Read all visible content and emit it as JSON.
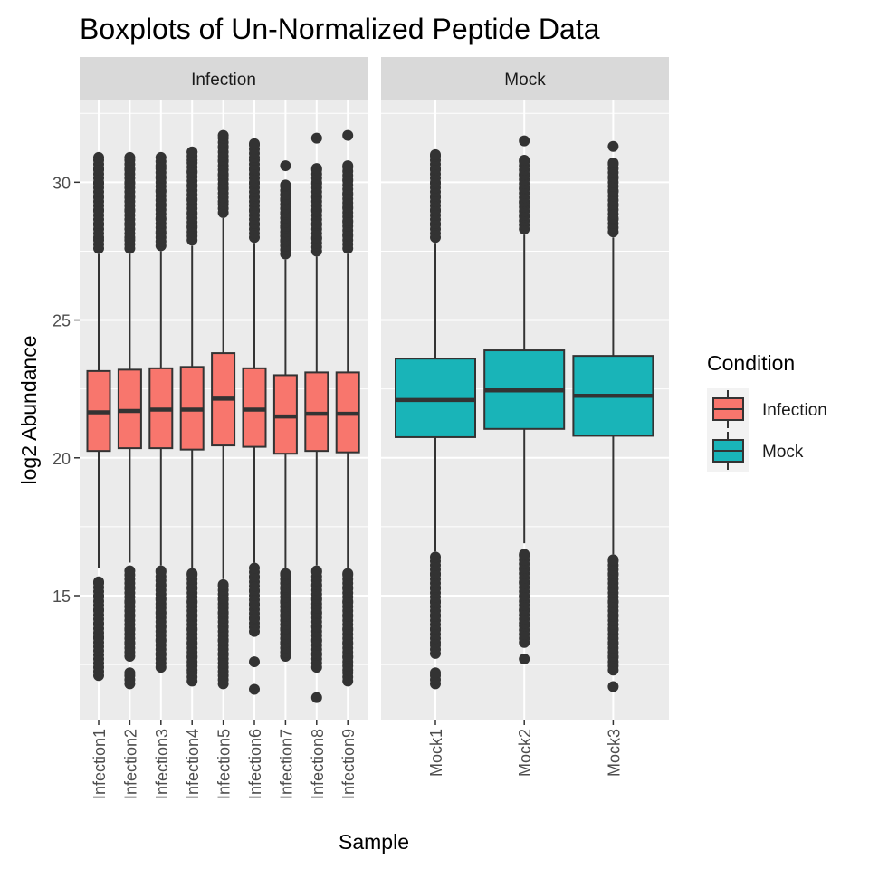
{
  "chart_data": {
    "type": "boxplot",
    "title": "Boxplots of Un-Normalized Peptide Data",
    "xlabel": "Sample",
    "ylabel": "log2 Abundance",
    "ylim": [
      10.5,
      33.0
    ],
    "yticks": [
      15,
      20,
      25,
      30
    ],
    "grid": true,
    "facets": [
      {
        "label": "Infection",
        "categories": [
          "Infection1",
          "Infection2",
          "Infection3",
          "Infection4",
          "Infection5",
          "Infection6",
          "Infection7",
          "Infection8",
          "Infection9"
        ],
        "boxes": [
          {
            "lower_whisker": 16.0,
            "q1": 20.25,
            "median": 21.65,
            "q3": 23.15,
            "upper_whisker": 27.4,
            "outliers_low": [
              12.1,
              12.7,
              13.0,
              13.5,
              14.0,
              14.5,
              15.0,
              15.5
            ],
            "outliers_high": [
              27.6,
              28.0,
              28.5,
              29.0,
              29.5,
              30.0,
              30.5,
              30.9
            ]
          },
          {
            "lower_whisker": 16.2,
            "q1": 20.35,
            "median": 21.7,
            "q3": 23.2,
            "upper_whisker": 27.4,
            "outliers_low": [
              11.8,
              12.2,
              12.8,
              13.3,
              13.8,
              14.3,
              14.8,
              15.3,
              15.9
            ],
            "outliers_high": [
              27.6,
              28.0,
              28.5,
              29.0,
              29.5,
              30.0,
              30.5,
              30.9
            ]
          },
          {
            "lower_whisker": 16.1,
            "q1": 20.35,
            "median": 21.75,
            "q3": 23.25,
            "upper_whisker": 27.5,
            "outliers_low": [
              12.4,
              12.9,
              13.4,
              13.9,
              14.4,
              14.9,
              15.4,
              15.9
            ],
            "outliers_high": [
              27.7,
              28.2,
              28.7,
              29.2,
              29.7,
              30.2,
              30.6,
              30.9
            ]
          },
          {
            "lower_whisker": 16.0,
            "q1": 20.3,
            "median": 21.75,
            "q3": 23.3,
            "upper_whisker": 27.7,
            "outliers_low": [
              11.9,
              12.3,
              12.8,
              13.3,
              13.8,
              14.3,
              14.8,
              15.3,
              15.8
            ],
            "outliers_high": [
              27.9,
              28.4,
              28.9,
              29.4,
              29.9,
              30.4,
              30.8,
              31.1
            ]
          },
          {
            "lower_whisker": 15.6,
            "q1": 20.45,
            "median": 22.15,
            "q3": 23.8,
            "upper_whisker": 28.7,
            "outliers_low": [
              11.8,
              12.4,
              12.9,
              13.4,
              13.9,
              14.4,
              14.9,
              15.4
            ],
            "outliers_high": [
              28.9,
              29.3,
              29.8,
              30.3,
              30.8,
              31.3,
              31.7
            ]
          },
          {
            "lower_whisker": 16.2,
            "q1": 20.4,
            "median": 21.75,
            "q3": 23.25,
            "upper_whisker": 27.8,
            "outliers_low": [
              11.6,
              12.6,
              13.7,
              14.2,
              14.7,
              15.2,
              15.7,
              16.0
            ],
            "outliers_high": [
              28.0,
              28.5,
              29.0,
              29.5,
              30.0,
              30.5,
              30.9,
              31.4
            ]
          },
          {
            "lower_whisker": 16.0,
            "q1": 20.15,
            "median": 21.5,
            "q3": 23.0,
            "upper_whisker": 27.2,
            "outliers_low": [
              12.8,
              13.3,
              13.8,
              14.3,
              14.8,
              15.3,
              15.8
            ],
            "outliers_high": [
              27.4,
              27.9,
              28.4,
              28.9,
              29.4,
              29.9,
              30.6
            ]
          },
          {
            "lower_whisker": 16.1,
            "q1": 20.25,
            "median": 21.6,
            "q3": 23.1,
            "upper_whisker": 27.3,
            "outliers_low": [
              11.3,
              12.4,
              12.9,
              13.4,
              13.9,
              14.4,
              14.9,
              15.4,
              15.9
            ],
            "outliers_high": [
              27.5,
              28.0,
              28.5,
              29.0,
              29.5,
              30.0,
              30.5,
              31.6
            ]
          },
          {
            "lower_whisker": 16.0,
            "q1": 20.2,
            "median": 21.6,
            "q3": 23.1,
            "upper_whisker": 27.4,
            "outliers_low": [
              11.9,
              12.3,
              12.8,
              13.3,
              13.8,
              14.3,
              14.8,
              15.3,
              15.8
            ],
            "outliers_high": [
              27.6,
              28.1,
              28.6,
              29.1,
              29.6,
              30.1,
              30.6,
              31.7
            ]
          }
        ]
      },
      {
        "label": "Mock",
        "categories": [
          "Mock1",
          "Mock2",
          "Mock3"
        ],
        "boxes": [
          {
            "lower_whisker": 16.6,
            "q1": 20.75,
            "median": 22.1,
            "q3": 23.6,
            "upper_whisker": 27.8,
            "outliers_low": [
              11.8,
              12.2,
              12.9,
              13.3,
              13.8,
              14.3,
              14.8,
              15.3,
              15.8,
              16.4
            ],
            "outliers_high": [
              28.0,
              28.5,
              29.0,
              29.5,
              30.0,
              30.5,
              31.0
            ]
          },
          {
            "lower_whisker": 16.9,
            "q1": 21.05,
            "median": 22.45,
            "q3": 23.9,
            "upper_whisker": 28.1,
            "outliers_low": [
              12.7,
              13.3,
              13.6,
              14.0,
              14.5,
              15.0,
              15.5,
              16.0,
              16.5
            ],
            "outliers_high": [
              28.3,
              28.8,
              29.3,
              29.8,
              30.3,
              30.8,
              31.5
            ]
          },
          {
            "lower_whisker": 16.5,
            "q1": 20.8,
            "median": 22.25,
            "q3": 23.7,
            "upper_whisker": 28.0,
            "outliers_low": [
              11.7,
              12.3,
              12.8,
              13.3,
              13.8,
              14.3,
              14.8,
              15.3,
              15.8,
              16.3
            ],
            "outliers_high": [
              28.2,
              28.7,
              29.2,
              29.7,
              30.2,
              30.7,
              31.3
            ]
          }
        ]
      }
    ],
    "legend": {
      "title": "Condition",
      "position": "right",
      "items": [
        {
          "label": "Infection",
          "color": "#F8766D"
        },
        {
          "label": "Mock",
          "color": "#00BFC4"
        }
      ]
    },
    "colors": {
      "panel_bg": "#EBEBEB",
      "strip_bg": "#D9D9D9",
      "grid": "#FFFFFF",
      "outlier": "#333333",
      "box_line": "#333333",
      "infection_fill": "#F8766D",
      "mock_fill": "#19B4B8"
    }
  }
}
